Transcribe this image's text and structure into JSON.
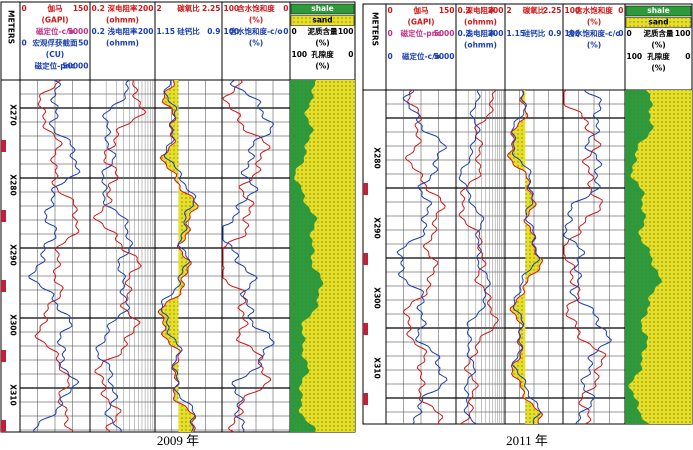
{
  "panels": [
    {
      "caption": "2009 年",
      "depth_unit": "METERS",
      "depth_labels": [
        "X270",
        "X280",
        "X290",
        "X300",
        "X310"
      ],
      "tracks": [
        [
          {
            "left": "0",
            "title": "伽马",
            "right": "150",
            "color": "#d01818"
          },
          {
            "title": "(GAPI)",
            "color": "#d01818"
          },
          {
            "title": "磁定位-c/o",
            "right": "5000",
            "color": "#c0308a"
          },
          {
            "left": "0",
            "title": "宏观俘获截面",
            "right": "50",
            "color": "#1a3fb0"
          },
          {
            "title": "(CU)",
            "color": "#1a3fb0"
          },
          {
            "title": "磁定位-pnc",
            "right": "50000",
            "color": "#1a3fb0"
          }
        ],
        [
          {
            "left": "0.2",
            "title": "深电阻率",
            "right": "200",
            "color": "#d01818"
          },
          {
            "title": "(ohmm)",
            "color": "#d01818"
          },
          {
            "left": "0.2",
            "title": "浅电阻率",
            "right": "200",
            "color": "#1a3fb0"
          },
          {
            "title": "(ohmm)",
            "color": "#1a3fb0"
          }
        ],
        [
          {
            "left": "2",
            "title": "碳氧比",
            "right": "2.25",
            "color": "#d01818"
          },
          {
            "title": "",
            "color": "#d01818"
          },
          {
            "left": "1.15",
            "title": "硅钙比",
            "right": "0.9",
            "color": "#1a3fb0"
          }
        ],
        [
          {
            "left": "100",
            "title": "含水饱和度",
            "right": "0",
            "color": "#d01818"
          },
          {
            "title": "(%)",
            "color": "#d01818"
          },
          {
            "left": "100",
            "title": "含水饱和度-c/o",
            "right": "0",
            "color": "#1a3fb0"
          },
          {
            "title": "(%)",
            "color": "#1a3fb0"
          }
        ],
        [
          {
            "title": "shale",
            "fill": "#2e9a3a"
          },
          {
            "title": "sand",
            "fill": "#e6e020"
          },
          {
            "left": "0",
            "title": "泥质含量",
            "right": "100",
            "color": "#000"
          },
          {
            "title": "(%)",
            "color": "#000"
          },
          {
            "left": "100",
            "title": "孔隙度",
            "right": "0",
            "color": "#000"
          },
          {
            "title": "(%)",
            "color": "#000"
          }
        ]
      ]
    },
    {
      "caption": "2011 年",
      "depth_unit": "METERS",
      "depth_labels": [
        "X280",
        "X290",
        "X300",
        "X310"
      ],
      "tracks": [
        [
          {
            "left": "0",
            "title": "伽马",
            "right": "150",
            "color": "#d01818"
          },
          {
            "title": "(GAPI)",
            "color": "#d01818"
          },
          {
            "left": "0",
            "title": "磁定位-pnc",
            "right": "5000",
            "color": "#c0308a"
          },
          {
            "title": "",
            "color": "#1a3fb0"
          },
          {
            "left": "0",
            "title": "磁定位-c/o",
            "right": "5000",
            "color": "#1a3fb0"
          }
        ],
        [
          {
            "left": "0.2",
            "title": "深电阻率",
            "right": "200",
            "color": "#d01818"
          },
          {
            "title": "(ohmm)",
            "color": "#d01818"
          },
          {
            "left": "0.2",
            "title": "浅电阻率",
            "right": "200",
            "color": "#1a3fb0"
          },
          {
            "title": "(ohmm)",
            "color": "#1a3fb0"
          }
        ],
        [
          {
            "left": "2",
            "title": "碳氧比",
            "right": "2.25",
            "color": "#d01818"
          },
          {
            "title": "",
            "color": "#d01818"
          },
          {
            "left": "1.15",
            "title": "硅钙比",
            "right": "0.9",
            "color": "#1a3fb0"
          }
        ],
        [
          {
            "left": "100",
            "title": "含水饱和度",
            "right": "0",
            "color": "#d01818"
          },
          {
            "title": "(%)",
            "color": "#d01818"
          },
          {
            "left": "100",
            "title": "含水饱和度-c/o",
            "right": "0",
            "color": "#1a3fb0"
          },
          {
            "title": "(%)",
            "color": "#1a3fb0"
          }
        ],
        [
          {
            "title": "shale",
            "fill": "#2e9a3a"
          },
          {
            "title": "sand",
            "fill": "#e6e020"
          },
          {
            "left": "0",
            "title": "泥质含量",
            "right": "100",
            "color": "#000"
          },
          {
            "title": "(%)",
            "color": "#000"
          },
          {
            "left": "100",
            "title": "孔隙度",
            "right": "0",
            "color": "#000"
          },
          {
            "title": "(%)",
            "color": "#000"
          }
        ]
      ]
    }
  ]
}
